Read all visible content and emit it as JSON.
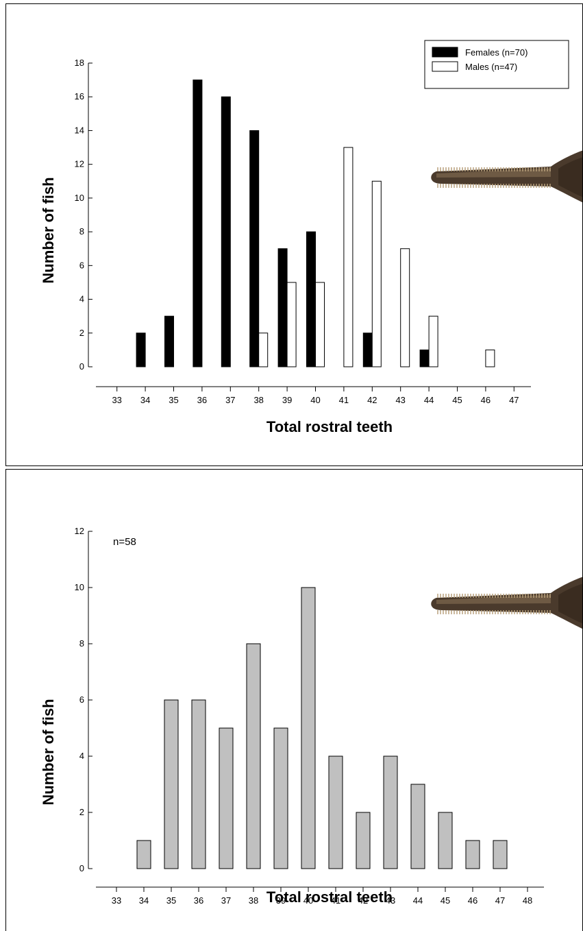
{
  "chart_data": [
    {
      "type": "bar",
      "categories": [
        "33",
        "34",
        "35",
        "36",
        "37",
        "38",
        "39",
        "40",
        "41",
        "42",
        "43",
        "44",
        "45",
        "46",
        "47"
      ],
      "series": [
        {
          "name": "Females (n=70)",
          "color": "#000000",
          "values": [
            0,
            2,
            3,
            17,
            16,
            14,
            7,
            8,
            0,
            2,
            0,
            1,
            0,
            0,
            0
          ]
        },
        {
          "name": "Males (n=47)",
          "color": "#ffffff",
          "values": [
            0,
            0,
            0,
            0,
            0,
            2,
            5,
            5,
            13,
            11,
            7,
            3,
            0,
            1,
            0
          ]
        }
      ],
      "xlabel": "Total rostral teeth",
      "ylabel": "Number of fish",
      "ylim": [
        0,
        18
      ],
      "yticks": [
        "0",
        "2",
        "4",
        "6",
        "8",
        "10",
        "12",
        "14",
        "16",
        "18"
      ],
      "legend_position": "top-right",
      "grid": false
    },
    {
      "type": "bar",
      "categories": [
        "33",
        "34",
        "35",
        "36",
        "37",
        "38",
        "39",
        "40",
        "41",
        "42",
        "43",
        "44",
        "45",
        "46",
        "47",
        "48"
      ],
      "series": [
        {
          "color": "#c0c0c0",
          "values": [
            0,
            1,
            6,
            6,
            5,
            8,
            5,
            10,
            4,
            2,
            4,
            3,
            2,
            1,
            1,
            0
          ]
        }
      ],
      "annotation": "n=58",
      "xlabel": "Total rostral teeth",
      "ylabel": "Number of fish",
      "ylim": [
        0,
        12
      ],
      "yticks": [
        "0",
        "2",
        "4",
        "6",
        "8",
        "10",
        "12"
      ],
      "grid": false
    }
  ]
}
